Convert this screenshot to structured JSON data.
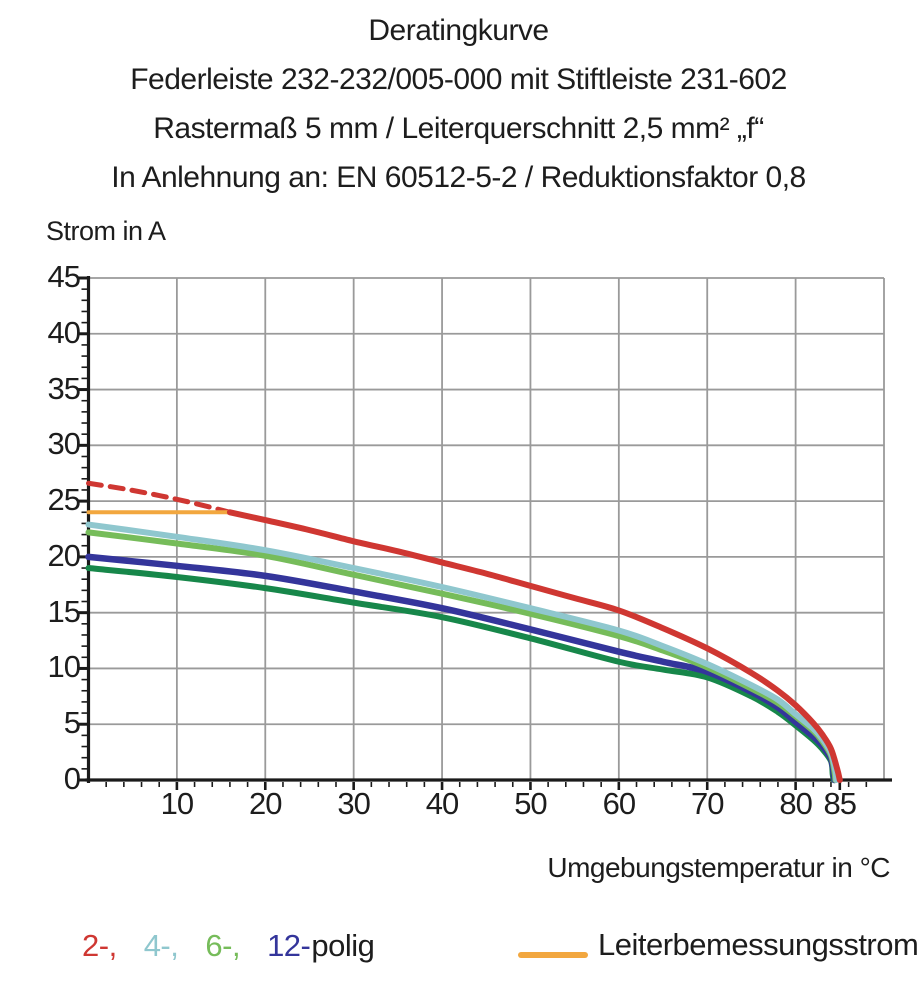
{
  "title": {
    "lines": [
      "Deratingkurve",
      "Federleiste 232-232/005-000 mit Stiftleiste 231-602",
      "Rastermaß 5 mm / Leiterquerschnitt 2,5 mm² „f“",
      "In Anlehnung an: EN 60512-5-2 / Reduktionsfaktor 0,8"
    ]
  },
  "colors": {
    "pole2": "#cf3732",
    "pole4": "#8fc7ce",
    "pole6": "#76bc5a",
    "pole12": "#34359b",
    "dark_green_unlabeled": "#17874a",
    "rated_current": "#f2a73f",
    "grid": "#9a9a9a",
    "axis": "#1a1a1a",
    "text": "#1d1d1d"
  },
  "legend": {
    "pole_items": [
      {
        "label": "2-,",
        "color": "#cf3732"
      },
      {
        "label": "4-,",
        "color": "#8fc7ce"
      },
      {
        "label": "6-,",
        "color": "#76bc5a"
      },
      {
        "label": "12-",
        "color": "#34359b"
      }
    ],
    "suffix": "polig",
    "rated_label": "Leiterbemessungsstrom",
    "rated_color": "#f2a73f"
  },
  "chart_data": {
    "type": "line",
    "title": "Deratingkurve",
    "xlabel": "Umgebungstemperatur in °C",
    "ylabel": "Strom in A",
    "xlim": [
      0,
      90
    ],
    "ylim": [
      0,
      45
    ],
    "grid": true,
    "x_major_ticks": [
      10,
      20,
      30,
      40,
      50,
      60,
      70,
      80,
      85
    ],
    "x_grid_step": 10,
    "x_minor_step": 2,
    "y_major_ticks": [
      0,
      5,
      10,
      15,
      20,
      25,
      30,
      35,
      40,
      45
    ],
    "y_grid_step": 5,
    "y_minor_step": 1,
    "legend_position": "bottom",
    "series": [
      {
        "name": "2-polig oberhalb Leiterbemessungsstrom (gestrichelt)",
        "color": "#cf3732",
        "dash": true,
        "width": 5,
        "points": [
          [
            0,
            26.6
          ],
          [
            4,
            26.1
          ],
          [
            8,
            25.5
          ],
          [
            12,
            24.8
          ],
          [
            16,
            24.0
          ]
        ]
      },
      {
        "name": "Leiterbemessungsstrom",
        "color": "#f2a73f",
        "dash": false,
        "width": 4,
        "points": [
          [
            0,
            24
          ],
          [
            16,
            24
          ]
        ]
      },
      {
        "name": "unbeschriftete Kurve (dunkelgrün)",
        "color": "#17874a",
        "dash": false,
        "width": 6,
        "points": [
          [
            0,
            19.0
          ],
          [
            10,
            18.2
          ],
          [
            20,
            17.2
          ],
          [
            30,
            15.9
          ],
          [
            40,
            14.6
          ],
          [
            50,
            12.7
          ],
          [
            60,
            10.6
          ],
          [
            65,
            9.9
          ],
          [
            70,
            9.2
          ],
          [
            75,
            7.5
          ],
          [
            78,
            6.1
          ],
          [
            80,
            4.9
          ],
          [
            82,
            3.6
          ],
          [
            83,
            2.8
          ],
          [
            84,
            1.7
          ],
          [
            84.2,
            0.5
          ],
          [
            84.3,
            0
          ]
        ]
      },
      {
        "name": "12-polig",
        "color": "#34359b",
        "dash": false,
        "width": 6.5,
        "points": [
          [
            0,
            20.0
          ],
          [
            10,
            19.2
          ],
          [
            20,
            18.3
          ],
          [
            30,
            16.9
          ],
          [
            40,
            15.4
          ],
          [
            50,
            13.5
          ],
          [
            60,
            11.5
          ],
          [
            65,
            10.6
          ],
          [
            70,
            9.7
          ],
          [
            75,
            7.9
          ],
          [
            78,
            6.5
          ],
          [
            80,
            5.2
          ],
          [
            82,
            3.9
          ],
          [
            83,
            3.1
          ],
          [
            84,
            1.9
          ],
          [
            84.3,
            0.6
          ],
          [
            84.4,
            0
          ]
        ]
      },
      {
        "name": "6-polig",
        "color": "#76bc5a",
        "dash": false,
        "width": 6,
        "points": [
          [
            0,
            22.2
          ],
          [
            10,
            21.2
          ],
          [
            20,
            20.1
          ],
          [
            30,
            18.4
          ],
          [
            40,
            16.7
          ],
          [
            50,
            14.9
          ],
          [
            60,
            12.9
          ],
          [
            65,
            11.6
          ],
          [
            70,
            10.1
          ],
          [
            75,
            8.2
          ],
          [
            78,
            6.9
          ],
          [
            80,
            5.7
          ],
          [
            82,
            4.4
          ],
          [
            83,
            3.5
          ],
          [
            84,
            2.2
          ],
          [
            84.4,
            0.7
          ],
          [
            84.5,
            0
          ]
        ]
      },
      {
        "name": "4-polig",
        "color": "#8fc7ce",
        "dash": false,
        "width": 6,
        "points": [
          [
            0,
            22.9
          ],
          [
            10,
            21.8
          ],
          [
            20,
            20.6
          ],
          [
            30,
            19.0
          ],
          [
            40,
            17.3
          ],
          [
            50,
            15.4
          ],
          [
            60,
            13.4
          ],
          [
            65,
            12.0
          ],
          [
            70,
            10.4
          ],
          [
            75,
            8.5
          ],
          [
            78,
            7.2
          ],
          [
            80,
            5.9
          ],
          [
            82,
            4.6
          ],
          [
            83,
            3.7
          ],
          [
            84,
            2.4
          ],
          [
            84.5,
            0.8
          ],
          [
            84.6,
            0
          ]
        ]
      },
      {
        "name": "2-polig",
        "color": "#cf3732",
        "dash": false,
        "width": 6,
        "points": [
          [
            16,
            24
          ],
          [
            20,
            23.3
          ],
          [
            25,
            22.4
          ],
          [
            30,
            21.4
          ],
          [
            35,
            20.5
          ],
          [
            40,
            19.5
          ],
          [
            45,
            18.5
          ],
          [
            50,
            17.4
          ],
          [
            55,
            16.3
          ],
          [
            60,
            15.2
          ],
          [
            65,
            13.6
          ],
          [
            70,
            11.8
          ],
          [
            75,
            9.6
          ],
          [
            78,
            8.0
          ],
          [
            80,
            6.7
          ],
          [
            82,
            5.1
          ],
          [
            83,
            4.1
          ],
          [
            84,
            2.8
          ],
          [
            84.7,
            1.0
          ],
          [
            85,
            0
          ]
        ]
      }
    ]
  }
}
